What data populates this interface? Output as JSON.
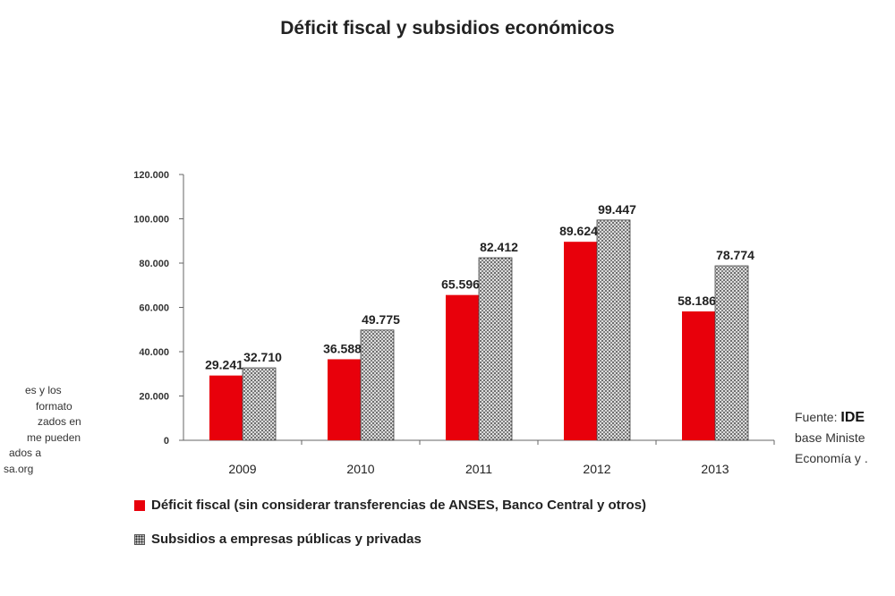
{
  "chart_data": {
    "type": "bar",
    "title": "Déficit fiscal y subsidios económicos",
    "categories": [
      "2009",
      "2010",
      "2011",
      "2012",
      "2013"
    ],
    "series": [
      {
        "name": "Déficit fiscal (sin considerar transferencias de ANSES, Banco Central y otros)",
        "values": [
          29241,
          36588,
          65596,
          89624,
          58186
        ],
        "labels": [
          "29.241",
          "36.588",
          "65.596",
          "89.624",
          "58.186"
        ],
        "color": "#e8000b",
        "pattern": "solid"
      },
      {
        "name": "Subsidios a empresas públicas y privadas",
        "values": [
          32710,
          49775,
          82412,
          99447,
          78774
        ],
        "labels": [
          "32.710",
          "49.775",
          "82.412",
          "99.447",
          "78.774"
        ],
        "color": "#d9d9d9",
        "pattern": "dotted"
      }
    ],
    "ylim": [
      0,
      120000
    ],
    "yticks": [
      0,
      20000,
      40000,
      60000,
      80000,
      100000,
      120000
    ],
    "ytick_labels": [
      "0",
      "20.000",
      "40.000",
      "60.000",
      "80.000",
      "100.000",
      "120.000"
    ],
    "grid": false,
    "legend_position": "bottom"
  },
  "left_note_lines": [
    "es y los",
    "formato",
    "zados en",
    "me pueden",
    "ados a",
    "sa.org"
  ],
  "right_note": {
    "line1_prefix": "Fuente: ",
    "line1_bold": "IDE",
    "line2": "base Ministe",
    "line3": "Economía y ."
  },
  "colors": {
    "deficit": "#e8000b",
    "subsidios_bg": "#d9d9d9",
    "subsidios_dots": "#222222",
    "axis": "#555555"
  }
}
